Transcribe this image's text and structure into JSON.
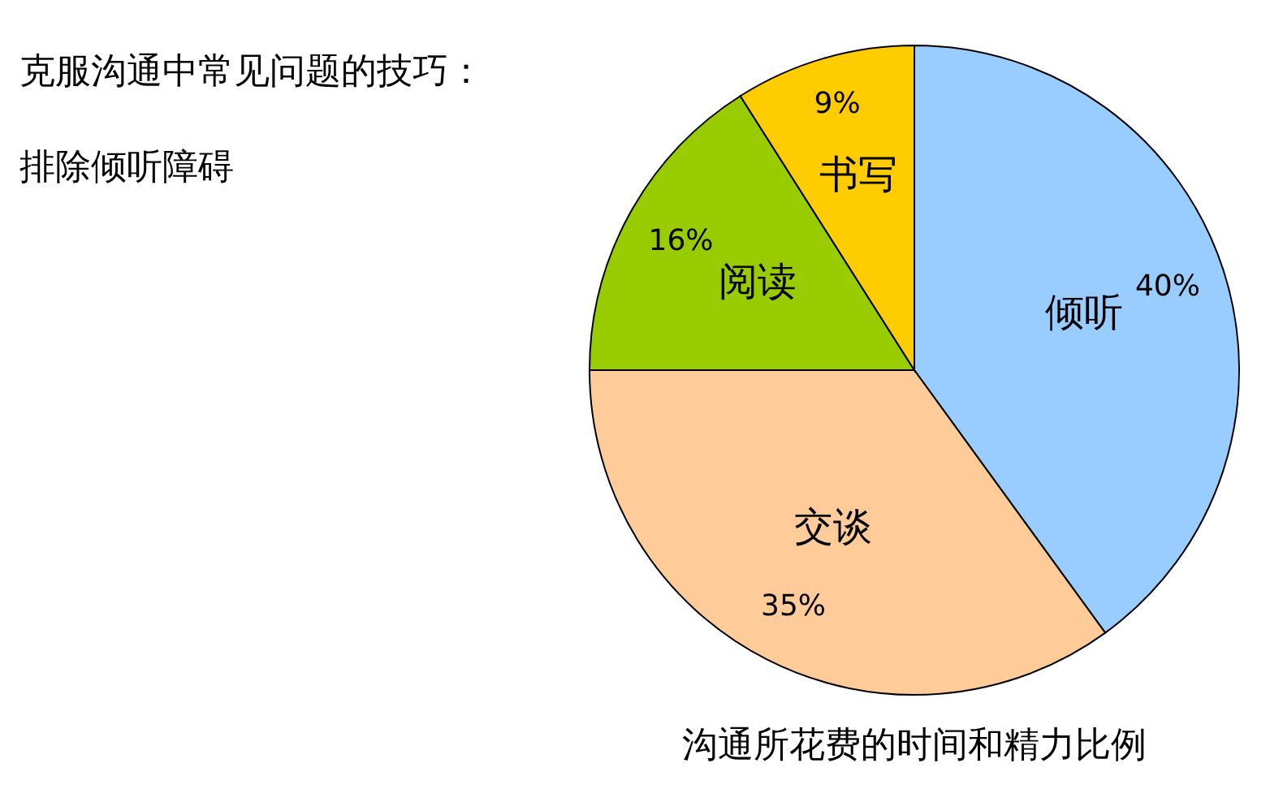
{
  "chart_data": {
    "type": "pie",
    "title": "克服沟通中常见问题的技巧：",
    "subtitle": "排除倾听障碍",
    "annotations": [
      "沟通所花费的时间和精力比例"
    ],
    "categories": [
      "倾听",
      "交谈",
      "阅读",
      "书写"
    ],
    "values": [
      40,
      35,
      16,
      9
    ],
    "value_labels": [
      "40%",
      "35%",
      "16%",
      "9%"
    ],
    "colors": [
      "#99ccff",
      "#ffcc99",
      "#99cc00",
      "#ffcc00"
    ],
    "legend": false
  }
}
